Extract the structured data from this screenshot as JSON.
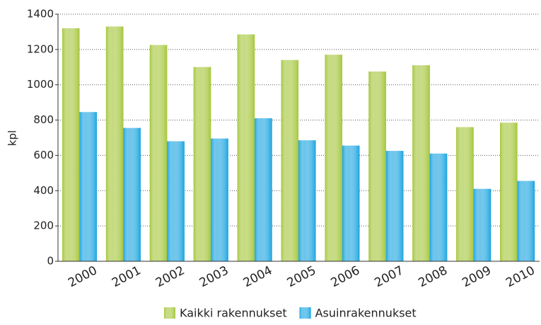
{
  "chart_data": {
    "type": "bar",
    "categories": [
      "2000",
      "2001",
      "2002",
      "2003",
      "2004",
      "2005",
      "2006",
      "2007",
      "2008",
      "2009",
      "2010"
    ],
    "series": [
      {
        "name": "Kaikki rakennukset",
        "color": "#a5c63b",
        "values": [
          1320,
          1330,
          1225,
          1100,
          1285,
          1140,
          1170,
          1075,
          1110,
          760,
          785
        ]
      },
      {
        "name": "Asuinrakennukset",
        "color": "#1aa4e0",
        "values": [
          845,
          755,
          680,
          695,
          810,
          685,
          655,
          625,
          610,
          410,
          455
        ]
      }
    ],
    "y_label": "kpl",
    "ylim": [
      0,
      1400
    ],
    "yticks": [
      0,
      200,
      400,
      600,
      800,
      1000,
      1200,
      1400
    ],
    "grid": true,
    "legend": "bottom"
  }
}
